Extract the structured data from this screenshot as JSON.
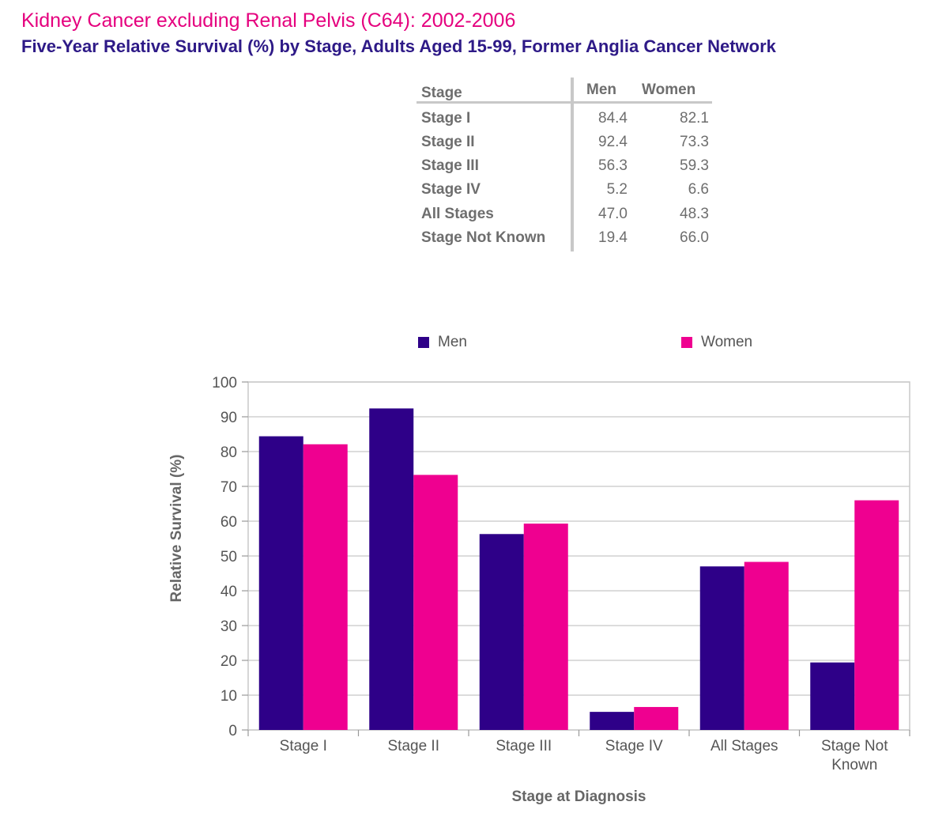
{
  "header": {
    "title": "Kidney Cancer excluding Renal Pelvis (C64): 2002-2006",
    "subtitle": "Five-Year Relative Survival (%) by Stage, Adults Aged 15-99, Former Anglia Cancer Network"
  },
  "table": {
    "col_stage": "Stage",
    "col_men": "Men",
    "col_women": "Women",
    "rows": [
      {
        "stage": "Stage I",
        "men": "84.4",
        "women": "82.1"
      },
      {
        "stage": "Stage II",
        "men": "92.4",
        "women": "73.3"
      },
      {
        "stage": "Stage III",
        "men": "56.3",
        "women": "59.3"
      },
      {
        "stage": "Stage IV",
        "men": "5.2",
        "women": "6.6"
      },
      {
        "stage": "All Stages",
        "men": "47.0",
        "women": "48.3"
      },
      {
        "stage": "Stage Not Known",
        "men": "19.4",
        "women": "66.0"
      }
    ]
  },
  "chart_data": {
    "type": "bar",
    "categories": [
      "Stage I",
      "Stage II",
      "Stage III",
      "Stage IV",
      "All Stages",
      "Stage Not Known"
    ],
    "series": [
      {
        "name": "Men",
        "color": "#2e0088",
        "values": [
          84.4,
          92.4,
          56.3,
          5.2,
          47.0,
          19.4
        ]
      },
      {
        "name": "Women",
        "color": "#ef0090",
        "values": [
          82.1,
          73.3,
          59.3,
          6.6,
          48.3,
          66.0
        ]
      }
    ],
    "xlabel": "Stage at Diagnosis",
    "ylabel": "Relative Survival (%)",
    "ylim": [
      0,
      100
    ],
    "yticks": [
      0,
      10,
      20,
      30,
      40,
      50,
      60,
      70,
      80,
      90,
      100
    ],
    "grid": true,
    "legend": "top"
  }
}
